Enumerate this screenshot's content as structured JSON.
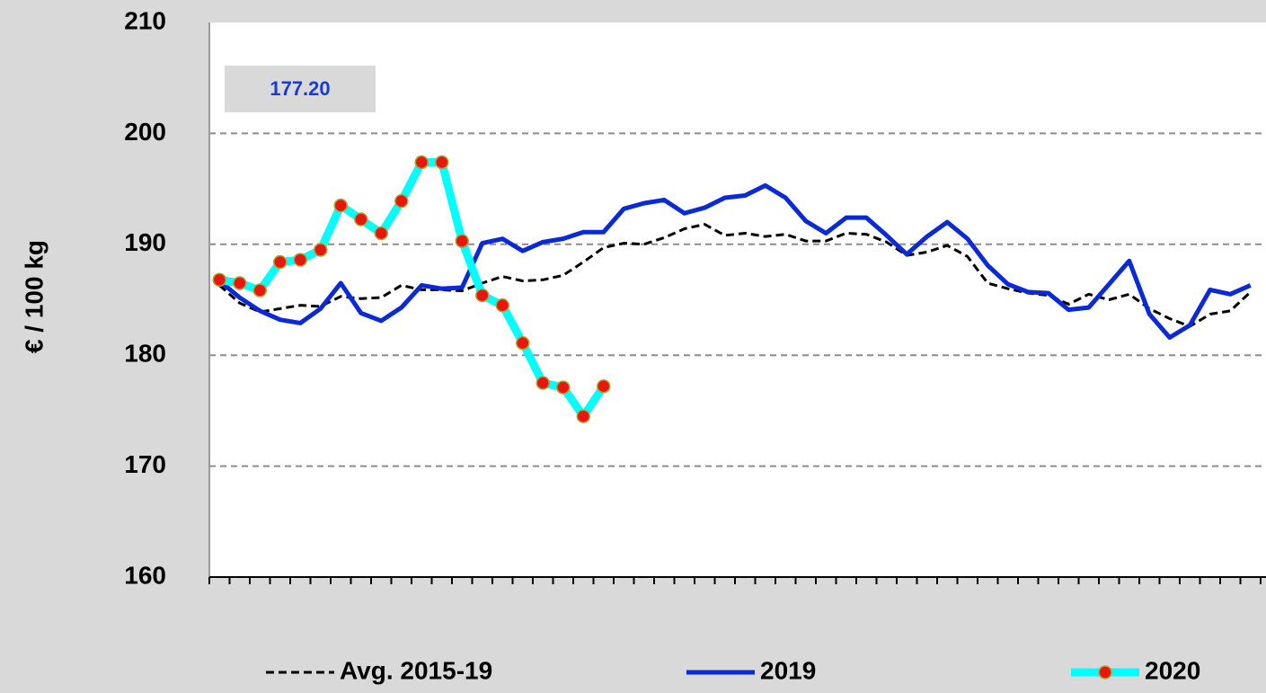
{
  "chart_data": {
    "type": "line",
    "y_label": "€ / 100 kg",
    "ylim": [
      160,
      210
    ],
    "yticks": [
      160,
      170,
      180,
      190,
      200,
      210
    ],
    "grid": true,
    "legend": "bottom",
    "annotation": "177.20",
    "categories": [
      null,
      null,
      null,
      null,
      null,
      null,
      null,
      null,
      null,
      null,
      null,
      null,
      null,
      null,
      null,
      null,
      null,
      null,
      null,
      null,
      null,
      null,
      null,
      null,
      null,
      null,
      null,
      null,
      null,
      null,
      null,
      null,
      null,
      null,
      null,
      null,
      null,
      null,
      null,
      null,
      null,
      null,
      null,
      null,
      null,
      null,
      null,
      null,
      null,
      null,
      null,
      null
    ],
    "series": [
      {
        "name": "Avg. 2015-19",
        "color": "#000000",
        "dashed": true,
        "values": [
          186.3,
          184.7,
          183.9,
          184.2,
          184.5,
          184.4,
          185.3,
          185.1,
          185.2,
          186.3,
          185.9,
          185.9,
          185.8,
          186.5,
          187.1,
          186.7,
          186.8,
          187.2,
          188.4,
          189.7,
          190.1,
          190.0,
          190.6,
          191.4,
          191.8,
          190.8,
          191.0,
          190.7,
          190.9,
          190.3,
          190.3,
          191.0,
          190.9,
          190.2,
          189.0,
          189.3,
          189.9,
          188.9,
          186.5,
          186.0,
          185.6,
          185.4,
          184.6,
          185.5,
          185.0,
          185.5,
          184.2,
          183.3,
          182.6,
          183.7,
          184.0,
          185.7
        ]
      },
      {
        "name": "2019",
        "color": "#0a2ad8",
        "values": [
          186.7,
          185.2,
          184.0,
          183.2,
          182.9,
          184.2,
          186.5,
          183.8,
          183.1,
          184.3,
          186.3,
          186.0,
          186.1,
          190.1,
          190.5,
          189.4,
          190.2,
          190.5,
          191.1,
          191.1,
          193.2,
          193.7,
          194.0,
          192.8,
          193.3,
          194.2,
          194.4,
          195.3,
          194.2,
          192.1,
          191.0,
          192.4,
          192.4,
          190.8,
          189.1,
          190.7,
          192.0,
          190.5,
          188.1,
          186.4,
          185.7,
          185.6,
          184.1,
          184.3,
          186.4,
          188.5,
          183.7,
          181.6,
          182.7,
          185.9,
          185.5,
          186.3
        ]
      },
      {
        "name": "2020",
        "color": "#00ffff",
        "marker_color": "#e8160c",
        "values": [
          186.8,
          186.5,
          185.85,
          188.4,
          188.6,
          189.5,
          193.5,
          192.25,
          191.0,
          193.9,
          197.4,
          197.4,
          190.3,
          185.4,
          184.5,
          181.1,
          177.5,
          177.1,
          174.5,
          177.2,
          null,
          null,
          null,
          null,
          null,
          null,
          null,
          null,
          null,
          null,
          null,
          null,
          null,
          null,
          null,
          null,
          null,
          null,
          null,
          null,
          null,
          null,
          null,
          null,
          null,
          null,
          null,
          null,
          null,
          null,
          null,
          null
        ]
      }
    ]
  }
}
